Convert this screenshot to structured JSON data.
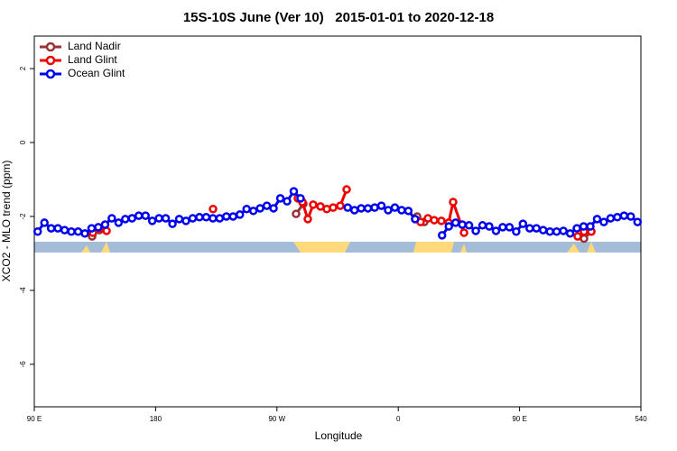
{
  "chart_data": {
    "type": "line",
    "title": "15S-10S June (Ver 10)   2015-01-01 to 2020-12-18",
    "x_label": "Longitude",
    "y_label": "XCO2 - MLO trend (ppm)",
    "xlim": [
      90,
      540
    ],
    "xticks": [
      {
        "value": 90,
        "label": "90 E"
      },
      180,
      {
        "value": 270,
        "label": "90 W"
      },
      {
        "value": 360,
        "label": "0"
      },
      {
        "value": 450,
        "label": "90 E"
      },
      540
    ],
    "ylim": [
      -7.15,
      2.88
    ],
    "yticks": [
      -6,
      -4,
      -2,
      0,
      2
    ],
    "grid": false,
    "legend": "top-left",
    "series": [
      {
        "name": "Land Nadir",
        "color": "#993333",
        "x": [
          132.9,
          138.2,
          null,
          284.2,
          289.6,
          null,
          374.0,
          379.3,
          null,
          497.8,
          503.2
        ],
        "values": [
          -2.54,
          -2.37,
          null,
          -1.93,
          -1.66,
          null,
          -2.0,
          -2.15,
          null,
          -2.6,
          -2.41
        ]
      },
      {
        "name": "Land Glint",
        "color": "#ee0000",
        "x": [
          133.5,
          138.9,
          143.6,
          null,
          222.6,
          null,
          285.5,
          288.9,
          292.9,
          296.9,
          302.3,
          307.0,
          311.7,
          317.0,
          321.7,
          null,
          376.6,
          382.0,
          386.7,
          392.0,
          397.4,
          400.7,
          408.8,
          null,
          493.1,
          497.8,
          503.2
        ],
        "values": [
          -2.44,
          -2.32,
          -2.39,
          null,
          -1.8,
          null,
          -1.51,
          -1.61,
          -2.07,
          -1.68,
          -1.73,
          -1.8,
          -1.76,
          -1.71,
          -1.27,
          null,
          -2.15,
          -2.05,
          -2.1,
          -2.12,
          -2.17,
          -1.61,
          -2.44,
          null,
          -2.54,
          -2.41,
          -2.41
        ]
      },
      {
        "name": "Ocean Glint",
        "color": "#0000ee",
        "x": [
          92.5,
          97.5,
          102.5,
          107.5,
          112.5,
          117.5,
          122.5,
          127.5,
          132.5,
          137.5,
          142.5,
          147.5,
          152.5,
          157.5,
          162.5,
          167.5,
          172.5,
          177.5,
          182.5,
          187.5,
          192.5,
          197.5,
          202.5,
          207.5,
          212.5,
          217.5,
          222.5,
          227.5,
          232.5,
          237.5,
          242.5,
          247.5,
          252.5,
          257.5,
          262.5,
          267.5,
          272.5,
          277.5,
          282.5,
          287.5,
          null,
          322.5,
          327.5,
          332.5,
          337.5,
          342.5,
          347.5,
          352.5,
          357.5,
          362.5,
          367.5,
          372.5,
          null,
          392.5,
          397.5,
          402.5,
          407.5,
          412.5,
          417.5,
          422.5,
          427.5,
          432.5,
          437.5,
          442.5,
          447.5,
          452.5,
          457.5,
          462.5,
          467.5,
          472.5,
          477.5,
          482.5,
          487.5,
          492.5,
          497.5,
          502.5,
          507.5,
          512.5,
          517.5,
          522.5,
          527.5,
          532.5,
          537.5
        ],
        "values": [
          -2.41,
          -2.17,
          -2.32,
          -2.32,
          -2.37,
          -2.41,
          -2.41,
          -2.46,
          -2.32,
          -2.29,
          -2.22,
          -2.05,
          -2.17,
          -2.07,
          -2.05,
          -1.98,
          -1.98,
          -2.12,
          -2.05,
          -2.05,
          -2.2,
          -2.07,
          -2.12,
          -2.05,
          -2.02,
          -2.02,
          -2.05,
          -2.05,
          -2.0,
          -2.0,
          -1.95,
          -1.8,
          -1.85,
          -1.78,
          -1.71,
          -1.78,
          -1.51,
          -1.59,
          -1.32,
          -1.51,
          null,
          -1.76,
          -1.83,
          -1.78,
          -1.78,
          -1.76,
          -1.71,
          -1.83,
          -1.76,
          -1.83,
          -1.85,
          -2.07,
          null,
          -2.51,
          -2.27,
          -2.17,
          -2.22,
          -2.24,
          -2.39,
          -2.24,
          -2.27,
          -2.39,
          -2.29,
          -2.29,
          -2.41,
          -2.2,
          -2.32,
          -2.32,
          -2.37,
          -2.41,
          -2.41,
          -2.39,
          -2.46,
          -2.32,
          -2.27,
          -2.27,
          -2.07,
          -2.15,
          -2.05,
          -2.02,
          -1.98,
          -2.0,
          -2.15
        ]
      }
    ]
  }
}
